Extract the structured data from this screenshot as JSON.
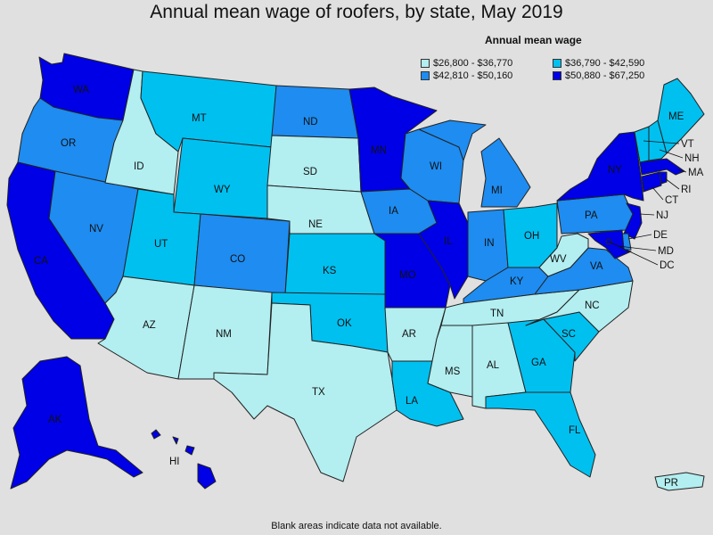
{
  "title": "Annual mean wage of roofers, by state, May 2019",
  "legend": {
    "title": "Annual mean wage",
    "bins": [
      {
        "label": "$26,800 - $36,770",
        "color": "#b3eef0"
      },
      {
        "label": "$36,790 - $42,590",
        "color": "#00c0f0"
      },
      {
        "label": "$42,810 - $50,160",
        "color": "#1e8cf0"
      },
      {
        "label": "$50,880 - $67,250",
        "color": "#0000e6"
      }
    ]
  },
  "footnote": "Blank areas indicate data not available.",
  "states": {
    "WA": {
      "label": "WA",
      "bin": 3
    },
    "OR": {
      "label": "OR",
      "bin": 2
    },
    "CA": {
      "label": "CA",
      "bin": 3
    },
    "NV": {
      "label": "NV",
      "bin": 2
    },
    "ID": {
      "label": "ID",
      "bin": 0
    },
    "MT": {
      "label": "MT",
      "bin": 1
    },
    "WY": {
      "label": "WY",
      "bin": 1
    },
    "UT": {
      "label": "UT",
      "bin": 1
    },
    "AZ": {
      "label": "AZ",
      "bin": 0
    },
    "CO": {
      "label": "CO",
      "bin": 2
    },
    "NM": {
      "label": "NM",
      "bin": 0
    },
    "ND": {
      "label": "ND",
      "bin": 2
    },
    "SD": {
      "label": "SD",
      "bin": 0
    },
    "NE": {
      "label": "NE",
      "bin": 0
    },
    "KS": {
      "label": "KS",
      "bin": 1
    },
    "OK": {
      "label": "OK",
      "bin": 1
    },
    "TX": {
      "label": "TX",
      "bin": 0
    },
    "MN": {
      "label": "MN",
      "bin": 3
    },
    "IA": {
      "label": "IA",
      "bin": 2
    },
    "MO": {
      "label": "MO",
      "bin": 3
    },
    "AR": {
      "label": "AR",
      "bin": 0
    },
    "LA": {
      "label": "LA",
      "bin": 1
    },
    "WI": {
      "label": "WI",
      "bin": 2
    },
    "IL": {
      "label": "IL",
      "bin": 3
    },
    "MI": {
      "label": "MI",
      "bin": 2
    },
    "IN": {
      "label": "IN",
      "bin": 2
    },
    "OH": {
      "label": "OH",
      "bin": 1
    },
    "KY": {
      "label": "KY",
      "bin": 2
    },
    "TN": {
      "label": "TN",
      "bin": 0
    },
    "MS": {
      "label": "MS",
      "bin": 0
    },
    "AL": {
      "label": "AL",
      "bin": 0
    },
    "GA": {
      "label": "GA",
      "bin": 1
    },
    "FL": {
      "label": "FL",
      "bin": 1
    },
    "SC": {
      "label": "SC",
      "bin": 1
    },
    "NC": {
      "label": "NC",
      "bin": 0
    },
    "VA": {
      "label": "VA",
      "bin": 2
    },
    "WV": {
      "label": "WV",
      "bin": 0
    },
    "PA": {
      "label": "PA",
      "bin": 2
    },
    "NY": {
      "label": "NY",
      "bin": 3
    },
    "VT": {
      "label": "VT",
      "bin": 1
    },
    "NH": {
      "label": "NH",
      "bin": 1
    },
    "ME": {
      "label": "ME",
      "bin": 1
    },
    "MA": {
      "label": "MA",
      "bin": 3
    },
    "RI": {
      "label": "RI",
      "bin": 3
    },
    "CT": {
      "label": "CT",
      "bin": 3
    },
    "NJ": {
      "label": "NJ",
      "bin": 3
    },
    "DE": {
      "label": "DE",
      "bin": 2
    },
    "MD": {
      "label": "MD",
      "bin": 3
    },
    "DC": {
      "label": "DC",
      "bin": 3
    },
    "AK": {
      "label": "AK",
      "bin": 3
    },
    "HI": {
      "label": "HI",
      "bin": 3
    },
    "PR": {
      "label": "PR",
      "bin": 0
    }
  }
}
